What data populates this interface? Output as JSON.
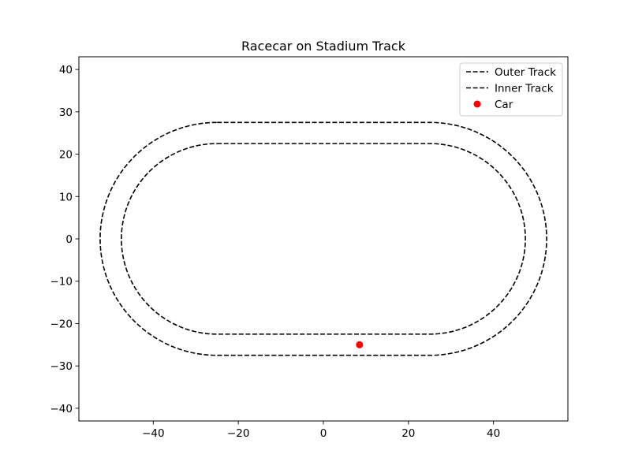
{
  "chart_data": {
    "type": "line",
    "title": "Racecar on Stadium Track",
    "xlabel": "",
    "ylabel": "",
    "xlim": [
      -57.5,
      57.5
    ],
    "ylim": [
      -43,
      43
    ],
    "x_ticks": [
      -40,
      -20,
      0,
      20,
      40
    ],
    "y_ticks": [
      -40,
      -30,
      -20,
      -10,
      0,
      10,
      20,
      30,
      40
    ],
    "grid": false,
    "legend_position": "top-right",
    "series": [
      {
        "name": "Outer Track",
        "kind": "stadium",
        "straight_half_length": 25,
        "radius": 27.5,
        "style": "dashed",
        "color": "#000000"
      },
      {
        "name": "Inner Track",
        "kind": "stadium",
        "straight_half_length": 25,
        "radius": 22.5,
        "style": "dashed",
        "color": "#000000"
      },
      {
        "name": "Car",
        "kind": "scatter",
        "points": [
          [
            8.5,
            -25
          ]
        ],
        "color": "#ff0000"
      }
    ]
  }
}
